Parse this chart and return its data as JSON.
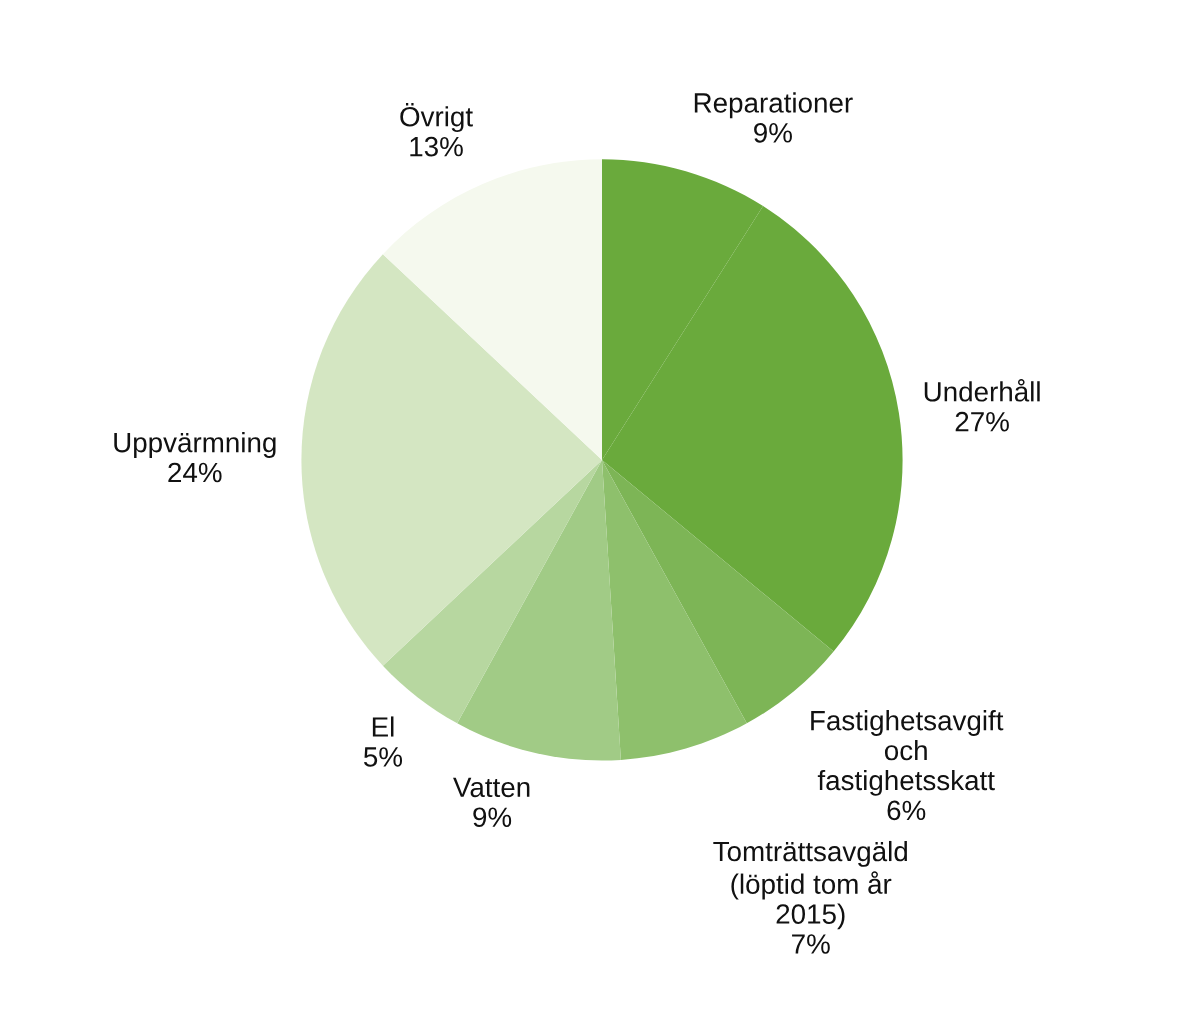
{
  "chart_data": {
    "type": "pie",
    "categories": [
      "Reparationer",
      "Underhåll",
      "Fastighetsavgift\noch\nfastighetsskatt",
      "Tomträttsavgäld\n(löptid tom år\n2015)",
      "Vatten",
      "El",
      "Uppvärmning",
      "Övrigt"
    ],
    "values": [
      9,
      27,
      6,
      7,
      9,
      5,
      24,
      13
    ],
    "value_labels": [
      "9%",
      "27%",
      "6%",
      "7%",
      "9%",
      "5%",
      "24%",
      "13%"
    ],
    "colors": [
      "#6aaa3c",
      "#6aaa3c",
      "#7db556",
      "#8ec06c",
      "#a1cb86",
      "#b7d7a0",
      "#d4e6c2",
      "#f5f9ee"
    ]
  }
}
